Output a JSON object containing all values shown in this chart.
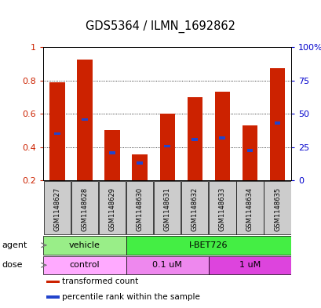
{
  "title": "GDS5364 / ILMN_1692862",
  "samples": [
    "GSM1148627",
    "GSM1148628",
    "GSM1148629",
    "GSM1148630",
    "GSM1148631",
    "GSM1148632",
    "GSM1148633",
    "GSM1148634",
    "GSM1148635"
  ],
  "bar_values": [
    0.79,
    0.925,
    0.5,
    0.355,
    0.6,
    0.7,
    0.73,
    0.53,
    0.875
  ],
  "blue_positions": [
    0.48,
    0.565,
    0.365,
    0.305,
    0.405,
    0.445,
    0.455,
    0.38,
    0.545
  ],
  "ylim_left": [
    0.2,
    1.0
  ],
  "ylim_right": [
    0,
    100
  ],
  "yticks_left": [
    0.2,
    0.4,
    0.6,
    0.8,
    1.0
  ],
  "ytick_labels_left": [
    "0.2",
    "0.4",
    "0.6",
    "0.8",
    "1"
  ],
  "yticks_right": [
    0,
    25,
    50,
    75,
    100
  ],
  "ytick_labels_right": [
    "0",
    "25",
    "50",
    "75",
    "100%"
  ],
  "bar_color": "#cc2200",
  "blue_color": "#2244cc",
  "agent_labels": [
    {
      "text": "vehicle",
      "start": 0,
      "end": 3,
      "color": "#99ee88"
    },
    {
      "text": "I-BET726",
      "start": 3,
      "end": 9,
      "color": "#44ee44"
    }
  ],
  "dose_labels": [
    {
      "text": "control",
      "start": 0,
      "end": 3,
      "color": "#ffaaff"
    },
    {
      "text": "0.1 uM",
      "start": 3,
      "end": 6,
      "color": "#ee88ee"
    },
    {
      "text": "1 uM",
      "start": 6,
      "end": 9,
      "color": "#dd44dd"
    }
  ],
  "legend_items": [
    {
      "color": "#cc2200",
      "label": "transformed count"
    },
    {
      "color": "#2244cc",
      "label": "percentile rank within the sample"
    }
  ],
  "left_tick_color": "#cc2200",
  "right_tick_color": "#0000cc",
  "bar_width": 0.55,
  "sample_box_color": "#cccccc",
  "agent_label": "agent",
  "dose_label": "dose"
}
